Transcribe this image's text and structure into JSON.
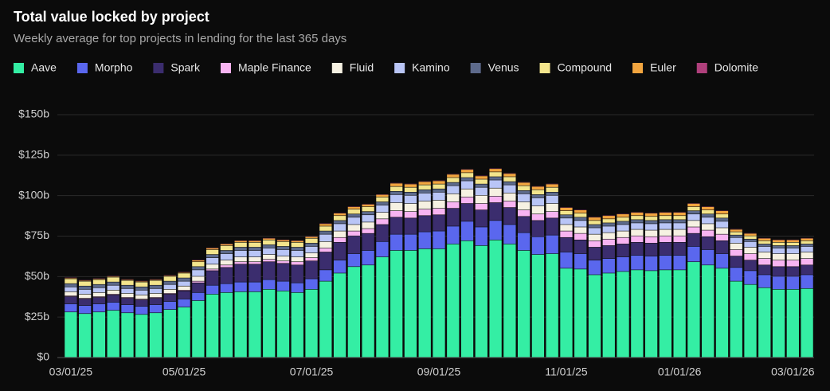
{
  "chart_data": {
    "type": "stacked_bar",
    "title": "Total value locked by project",
    "subtitle": "Weekly average for top projects in lending for the last 365 days",
    "categories": [
      "03/01/25",
      null,
      null,
      null,
      null,
      null,
      null,
      null,
      "05/01/25",
      null,
      null,
      null,
      null,
      null,
      null,
      null,
      null,
      "07/01/25",
      null,
      null,
      null,
      null,
      null,
      null,
      null,
      null,
      "09/01/25",
      null,
      null,
      null,
      null,
      null,
      null,
      null,
      null,
      "11/01/25",
      null,
      null,
      null,
      null,
      null,
      null,
      null,
      "01/01/26",
      null,
      null,
      null,
      null,
      null,
      null,
      null,
      "03/01/26",
      null
    ],
    "ylim": [
      0,
      150
    ],
    "yticks": [
      {
        "value": 0,
        "label": "$0"
      },
      {
        "value": 25,
        "label": "$25b"
      },
      {
        "value": 50,
        "label": "$50b"
      },
      {
        "value": 75,
        "label": "$75b"
      },
      {
        "value": 100,
        "label": "$100b"
      },
      {
        "value": 125,
        "label": "$125b"
      },
      {
        "value": 150,
        "label": "$150b"
      }
    ],
    "grid": true,
    "legend": "top",
    "series": [
      {
        "name": "Aave",
        "color": "#34eea4",
        "values": [
          28,
          27,
          28,
          29,
          27.5,
          26.5,
          27.5,
          29.5,
          31,
          35,
          39,
          40,
          40.5,
          40.5,
          42,
          41,
          40,
          42,
          47,
          52,
          56,
          57,
          62,
          66,
          66,
          67,
          67,
          70,
          72,
          69,
          72.5,
          70,
          66,
          63.5,
          64,
          55,
          54.5,
          51,
          52,
          53,
          54,
          53.5,
          54,
          54,
          59,
          57,
          55,
          47,
          45,
          43,
          42,
          42,
          42.5
        ]
      },
      {
        "name": "Morpho",
        "color": "#5a67ee",
        "values": [
          5,
          5,
          5,
          5,
          5,
          5,
          5,
          5,
          5,
          5,
          5.5,
          5.5,
          6,
          6,
          6,
          6,
          6,
          6.5,
          7,
          8,
          8,
          9,
          9.5,
          10,
          10,
          10.5,
          11,
          11,
          12,
          11.5,
          12,
          12,
          11,
          11,
          11.5,
          10,
          9.5,
          9,
          9,
          9,
          9,
          9,
          9,
          9,
          9.5,
          9.5,
          9,
          8.5,
          8.5,
          8,
          8,
          8,
          8.5
        ]
      },
      {
        "name": "Spark",
        "color": "#3b2d6e",
        "values": [
          4.5,
          4,
          4,
          4.5,
          4,
          4,
          4,
          4.5,
          5,
          6,
          9,
          10,
          11,
          11,
          11,
          11,
          11,
          11,
          11,
          11,
          11,
          10.5,
          10.5,
          10.5,
          10,
          10,
          10,
          11,
          11,
          10.5,
          11,
          10.5,
          10,
          10,
          10.5,
          9,
          8.5,
          8,
          8,
          8,
          8,
          8,
          8,
          8,
          8,
          8,
          8,
          7,
          6.5,
          6,
          6,
          6,
          6
        ]
      },
      {
        "name": "Maple Finance",
        "color": "#f8b4f2",
        "values": [
          0.5,
          0.5,
          0.5,
          0.5,
          0.5,
          0.5,
          0.5,
          0.5,
          0.5,
          1,
          1,
          1.5,
          1.5,
          1.5,
          1.5,
          1.5,
          2,
          2,
          2.5,
          3,
          3,
          3,
          3.5,
          4,
          4,
          4,
          4,
          4,
          4,
          4,
          4,
          4,
          4,
          4,
          4,
          4,
          4,
          4,
          4,
          4,
          4,
          4,
          4,
          4,
          4,
          4,
          4,
          4,
          4,
          4,
          4,
          4,
          4
        ]
      },
      {
        "name": "Fluid",
        "color": "#f6f1e2",
        "values": [
          2.5,
          2.5,
          2.5,
          2.5,
          2.5,
          2.5,
          2.5,
          2.5,
          2.5,
          3,
          3,
          3,
          3,
          3,
          3,
          3,
          3,
          3,
          4,
          4,
          4,
          4,
          4,
          5,
          5,
          5,
          5,
          5,
          5,
          5,
          5,
          5,
          5,
          5,
          5,
          4,
          4,
          4,
          4,
          4,
          4,
          4,
          4,
          4,
          4,
          4,
          4,
          4,
          4,
          4,
          4,
          4,
          4
        ]
      },
      {
        "name": "Kamino",
        "color": "#b9c5f6",
        "values": [
          3,
          3,
          3,
          3,
          3,
          3,
          3,
          3,
          3,
          4,
          4,
          4,
          4,
          4,
          4,
          4,
          4,
          4,
          4.5,
          4.5,
          4.5,
          4.5,
          4.5,
          5,
          5,
          5,
          5,
          5,
          5,
          5,
          5,
          5,
          5,
          5,
          5,
          4,
          4,
          4,
          4,
          4,
          4,
          4,
          4,
          4,
          4,
          4,
          4,
          3.5,
          3.5,
          3.5,
          3.5,
          3.5,
          3.5
        ]
      },
      {
        "name": "Venus",
        "color": "#5d6a8b",
        "values": [
          2,
          2,
          2,
          2,
          2,
          2,
          2,
          2,
          2,
          2,
          2,
          2,
          2,
          2,
          2,
          2,
          2,
          2,
          2,
          2,
          2,
          2,
          2,
          2,
          2,
          2,
          2,
          2,
          2,
          2,
          2,
          2,
          2,
          2,
          2,
          2,
          2,
          2,
          2,
          2,
          2,
          2,
          2,
          2,
          2,
          2,
          2,
          1.5,
          1.5,
          1.5,
          1.5,
          1.5,
          1.5
        ]
      },
      {
        "name": "Compound",
        "color": "#f3e58c",
        "values": [
          3,
          3,
          3,
          3,
          3,
          3,
          3,
          3,
          3,
          3,
          3,
          3,
          3,
          3,
          3,
          3,
          3,
          3,
          3,
          3,
          3,
          3,
          3,
          3,
          3,
          3,
          3,
          3,
          3,
          3,
          3,
          3,
          3,
          3,
          3,
          2.5,
          2.5,
          2.5,
          2.5,
          2.5,
          2.5,
          2.5,
          2.5,
          2.5,
          2.5,
          2.5,
          2.5,
          2,
          2,
          2,
          2,
          2,
          2
        ]
      },
      {
        "name": "Euler",
        "color": "#f2a53f",
        "values": [
          0.5,
          0.5,
          0.5,
          0.5,
          0.5,
          0.5,
          0.5,
          0.5,
          0.5,
          1,
          1,
          1,
          1,
          1,
          1,
          1,
          1,
          1,
          1.5,
          1.5,
          1.5,
          1.5,
          1.5,
          2,
          2,
          2,
          2,
          2,
          2,
          2,
          2,
          2,
          2,
          2,
          2,
          2,
          2,
          2,
          2,
          2,
          2,
          2,
          2,
          2,
          2,
          2,
          2,
          1.5,
          1.5,
          1.5,
          1.5,
          1.5,
          1.5
        ]
      },
      {
        "name": "Dolomite",
        "color": "#b0407c",
        "values": [
          0.3,
          0.3,
          0.3,
          0.3,
          0.3,
          0.3,
          0.3,
          0.3,
          0.3,
          0.3,
          0.3,
          0.3,
          0.3,
          0.3,
          0.3,
          0.3,
          0.3,
          0.3,
          0.3,
          0.3,
          0.3,
          0.3,
          0.3,
          0.3,
          0.3,
          0.3,
          0.3,
          0.3,
          0.3,
          0.3,
          0.3,
          0.3,
          0.3,
          0.3,
          0.3,
          0.3,
          0.3,
          0.3,
          0.3,
          0.3,
          0.3,
          0.3,
          0.3,
          0.3,
          0.3,
          0.3,
          0.3,
          0.3,
          0.3,
          0.3,
          0.3,
          0.3,
          0.3
        ]
      }
    ]
  }
}
